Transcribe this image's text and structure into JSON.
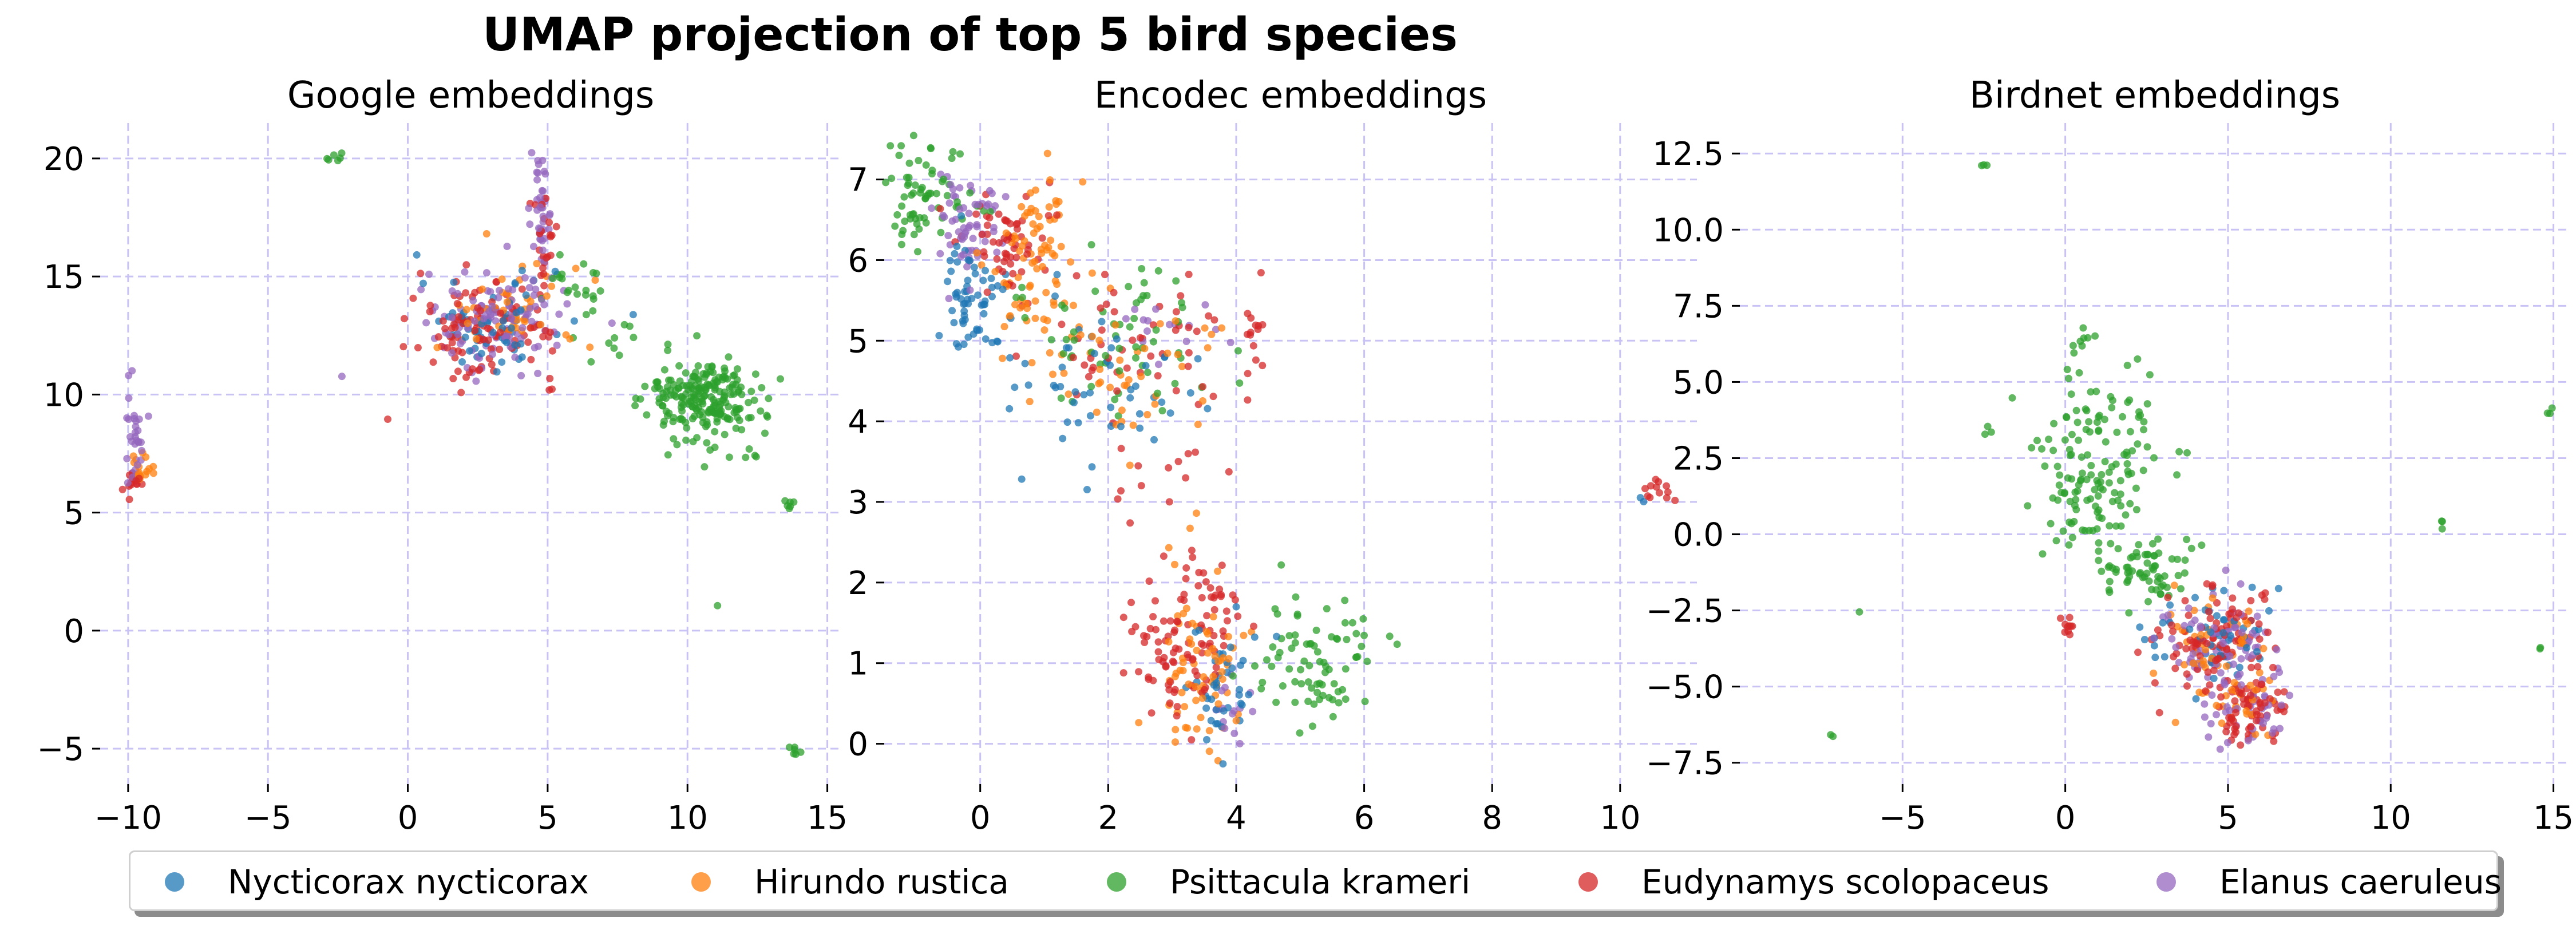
{
  "figure": {
    "title": "UMAP projection of top 5 bird species"
  },
  "legend": {
    "placement": "bottom-center",
    "items": [
      {
        "label": "Nycticorax nycticorax",
        "color": "#1f77b4"
      },
      {
        "label": "Hirundo rustica",
        "color": "#ff7f0e"
      },
      {
        "label": "Psittacula krameri",
        "color": "#2ca02c"
      },
      {
        "label": "Eudynamys scolopaceus",
        "color": "#d62728"
      },
      {
        "label": "Elanus caeruleus",
        "color": "#9467bd"
      }
    ]
  },
  "chart_data": [
    {
      "type": "scatter",
      "title": "Google embeddings",
      "xlim": [
        -11,
        15.5
      ],
      "ylim": [
        -6.5,
        21.5
      ],
      "xticks": [
        -10,
        -5,
        0,
        5,
        10,
        15
      ],
      "xtick_labels": [
        "−10",
        "−5",
        "0",
        "5",
        "10",
        "15"
      ],
      "yticks": [
        -5,
        0,
        5,
        10,
        15,
        20
      ],
      "ytick_labels": [
        "−5",
        "0",
        "5",
        "10",
        "15",
        "20"
      ],
      "grid": true,
      "clusters": [
        {
          "species": 0,
          "center": [
            3,
            13
          ],
          "spread": [
            1.3,
            1.0
          ],
          "n": 60
        },
        {
          "species": 1,
          "center": [
            3.5,
            13.5
          ],
          "spread": [
            1.3,
            1.0
          ],
          "n": 50
        },
        {
          "species": 3,
          "center": [
            2.8,
            12.8
          ],
          "spread": [
            1.3,
            1.1
          ],
          "n": 110
        },
        {
          "species": 4,
          "center": [
            3.2,
            13.2
          ],
          "spread": [
            1.3,
            1.0
          ],
          "n": 110
        },
        {
          "species": 4,
          "center": [
            4.8,
            17.3
          ],
          "spread": [
            0.2,
            1.3
          ],
          "n": 40
        },
        {
          "species": 3,
          "center": [
            4.9,
            16.5
          ],
          "spread": [
            0.3,
            1.0
          ],
          "n": 25
        },
        {
          "species": 2,
          "center": [
            10.6,
            9.8
          ],
          "spread": [
            1.0,
            0.9
          ],
          "n": 220
        },
        {
          "species": 2,
          "center": [
            6.0,
            14.5
          ],
          "spread": [
            0.6,
            0.5
          ],
          "n": 20
        },
        {
          "species": 2,
          "center": [
            8.0,
            12.5
          ],
          "spread": [
            0.9,
            0.6
          ],
          "n": 12
        },
        {
          "species": 4,
          "center": [
            -9.8,
            8.6
          ],
          "spread": [
            0.2,
            1.0
          ],
          "n": 30
        },
        {
          "species": 1,
          "center": [
            -9.5,
            7.0
          ],
          "spread": [
            0.2,
            0.5
          ],
          "n": 15
        },
        {
          "species": 3,
          "center": [
            -9.9,
            6.2
          ],
          "spread": [
            0.2,
            0.3
          ],
          "n": 15
        },
        {
          "species": 2,
          "center": [
            -2.4,
            20.1
          ],
          "spread": [
            0.2,
            0.1
          ],
          "n": 6
        },
        {
          "species": 2,
          "center": [
            13.6,
            5.3
          ],
          "spread": [
            0.1,
            0.2
          ],
          "n": 6
        },
        {
          "species": 2,
          "center": [
            13.8,
            -5.1
          ],
          "spread": [
            0.1,
            0.1
          ],
          "n": 6
        },
        {
          "species": 2,
          "center": [
            12.0,
            7.4
          ],
          "spread": [
            0.3,
            0.2
          ],
          "n": 5
        },
        {
          "species": 2,
          "center": [
            11.0,
            1.0
          ],
          "spread": [
            0.05,
            0.05
          ],
          "n": 1
        }
      ]
    },
    {
      "type": "scatter",
      "title": "Encodec embeddings",
      "xlim": [
        -1.5,
        11.2
      ],
      "ylim": [
        -0.5,
        7.7
      ],
      "xticks": [
        0,
        2,
        4,
        6,
        8,
        10
      ],
      "xtick_labels": [
        "0",
        "2",
        "4",
        "6",
        "8",
        "10"
      ],
      "yticks": [
        0,
        1,
        2,
        3,
        4,
        5,
        6,
        7
      ],
      "ytick_labels": [
        "0",
        "1",
        "2",
        "3",
        "4",
        "5",
        "6",
        "7"
      ],
      "grid": true,
      "clusters": [
        {
          "species": 2,
          "center": [
            -0.9,
            6.8
          ],
          "spread": [
            0.35,
            0.35
          ],
          "n": 70
        },
        {
          "species": 4,
          "center": [
            -0.2,
            6.4
          ],
          "spread": [
            0.25,
            0.3
          ],
          "n": 60
        },
        {
          "species": 0,
          "center": [
            -0.1,
            5.6
          ],
          "spread": [
            0.25,
            0.35
          ],
          "n": 60
        },
        {
          "species": 3,
          "center": [
            0.4,
            6.2
          ],
          "spread": [
            0.35,
            0.3
          ],
          "n": 60
        },
        {
          "species": 1,
          "center": [
            0.9,
            6.3
          ],
          "spread": [
            0.3,
            0.35
          ],
          "n": 50
        },
        {
          "species": 1,
          "center": [
            0.8,
            5.6
          ],
          "spread": [
            0.4,
            0.3
          ],
          "n": 25
        },
        {
          "species": 2,
          "center": [
            2.3,
            5.0
          ],
          "spread": [
            0.8,
            0.45
          ],
          "n": 60
        },
        {
          "species": 0,
          "center": [
            2.0,
            4.4
          ],
          "spread": [
            0.8,
            0.6
          ],
          "n": 50
        },
        {
          "species": 3,
          "center": [
            2.5,
            4.9
          ],
          "spread": [
            0.9,
            0.5
          ],
          "n": 55
        },
        {
          "species": 1,
          "center": [
            2.0,
            4.7
          ],
          "spread": [
            0.8,
            0.6
          ],
          "n": 50
        },
        {
          "species": 4,
          "center": [
            3.2,
            5.2
          ],
          "spread": [
            0.7,
            0.3
          ],
          "n": 15
        },
        {
          "species": 3,
          "center": [
            4.2,
            5.15
          ],
          "spread": [
            0.1,
            0.12
          ],
          "n": 10
        },
        {
          "species": 3,
          "center": [
            2.8,
            3.3
          ],
          "spread": [
            0.5,
            0.3
          ],
          "n": 12
        },
        {
          "species": 2,
          "center": [
            5.3,
            1.1
          ],
          "spread": [
            0.45,
            0.4
          ],
          "n": 80
        },
        {
          "species": 1,
          "center": [
            3.5,
            1.1
          ],
          "spread": [
            0.35,
            0.6
          ],
          "n": 70
        },
        {
          "species": 3,
          "center": [
            3.0,
            1.1
          ],
          "spread": [
            0.35,
            0.4
          ],
          "n": 70
        },
        {
          "species": 0,
          "center": [
            3.8,
            0.8
          ],
          "spread": [
            0.25,
            0.45
          ],
          "n": 40
        },
        {
          "species": 3,
          "center": [
            3.6,
            1.8
          ],
          "spread": [
            0.3,
            0.35
          ],
          "n": 35
        },
        {
          "species": 4,
          "center": [
            3.9,
            0.4
          ],
          "spread": [
            0.15,
            0.2
          ],
          "n": 15
        },
        {
          "species": 3,
          "center": [
            10.6,
            3.15
          ],
          "spread": [
            0.12,
            0.08
          ],
          "n": 12
        },
        {
          "species": 0,
          "center": [
            10.3,
            3.0
          ],
          "spread": [
            0.05,
            0.03
          ],
          "n": 2
        }
      ]
    },
    {
      "type": "scatter",
      "title": "Birdnet embeddings",
      "xlim": [
        -10,
        15.5
      ],
      "ylim": [
        -8.2,
        13.5
      ],
      "xticks": [
        -5,
        0,
        5,
        10,
        15
      ],
      "xtick_labels": [
        "−5",
        "0",
        "5",
        "10",
        "15"
      ],
      "yticks": [
        -7.5,
        -5.0,
        -2.5,
        0.0,
        2.5,
        5.0,
        7.5,
        10.0,
        12.5
      ],
      "ytick_labels": [
        "−7.5",
        "−5.0",
        "−2.5",
        "0.0",
        "2.5",
        "5.0",
        "7.5",
        "10.0",
        "12.5"
      ],
      "grid": true,
      "clusters": [
        {
          "species": 2,
          "center": [
            1.0,
            1.8
          ],
          "spread": [
            1.0,
            1.6
          ],
          "n": 150
        },
        {
          "species": 2,
          "center": [
            2.4,
            -1.3
          ],
          "spread": [
            0.8,
            0.5
          ],
          "n": 60
        },
        {
          "species": 2,
          "center": [
            0.4,
            6.3
          ],
          "spread": [
            0.2,
            0.4
          ],
          "n": 8
        },
        {
          "species": 3,
          "center": [
            4.5,
            -3.5
          ],
          "spread": [
            1.0,
            0.8
          ],
          "n": 90
        },
        {
          "species": 4,
          "center": [
            4.7,
            -3.6
          ],
          "spread": [
            1.0,
            0.8
          ],
          "n": 80
        },
        {
          "species": 0,
          "center": [
            4.3,
            -3.3
          ],
          "spread": [
            1.0,
            0.8
          ],
          "n": 50
        },
        {
          "species": 1,
          "center": [
            4.6,
            -3.8
          ],
          "spread": [
            1.0,
            0.8
          ],
          "n": 45
        },
        {
          "species": 3,
          "center": [
            5.8,
            -6.0
          ],
          "spread": [
            0.6,
            0.6
          ],
          "n": 70
        },
        {
          "species": 4,
          "center": [
            5.5,
            -5.8
          ],
          "spread": [
            0.7,
            0.6
          ],
          "n": 40
        },
        {
          "species": 1,
          "center": [
            5.2,
            -5.5
          ],
          "spread": [
            0.5,
            0.5
          ],
          "n": 20
        },
        {
          "species": 3,
          "center": [
            0,
            -3.0
          ],
          "spread": [
            0.2,
            0.2
          ],
          "n": 10
        },
        {
          "species": 2,
          "center": [
            -2.5,
            12.1
          ],
          "spread": [
            0.05,
            0.08
          ],
          "n": 3
        },
        {
          "species": 2,
          "center": [
            -2.4,
            3.4
          ],
          "spread": [
            0.1,
            0.1
          ],
          "n": 3
        },
        {
          "species": 2,
          "center": [
            14.9,
            4.0
          ],
          "spread": [
            0.05,
            0.1
          ],
          "n": 3
        },
        {
          "species": 2,
          "center": [
            11.5,
            0.4
          ],
          "spread": [
            0.05,
            0.1
          ],
          "n": 3
        },
        {
          "species": 2,
          "center": [
            14.6,
            -3.8
          ],
          "spread": [
            0.03,
            0.05
          ],
          "n": 2
        },
        {
          "species": 2,
          "center": [
            -7.2,
            -6.6
          ],
          "spread": [
            0.03,
            0.03
          ],
          "n": 2
        },
        {
          "species": 2,
          "center": [
            -6.3,
            -2.6
          ],
          "spread": [
            0.03,
            0.03
          ],
          "n": 1
        }
      ]
    }
  ]
}
